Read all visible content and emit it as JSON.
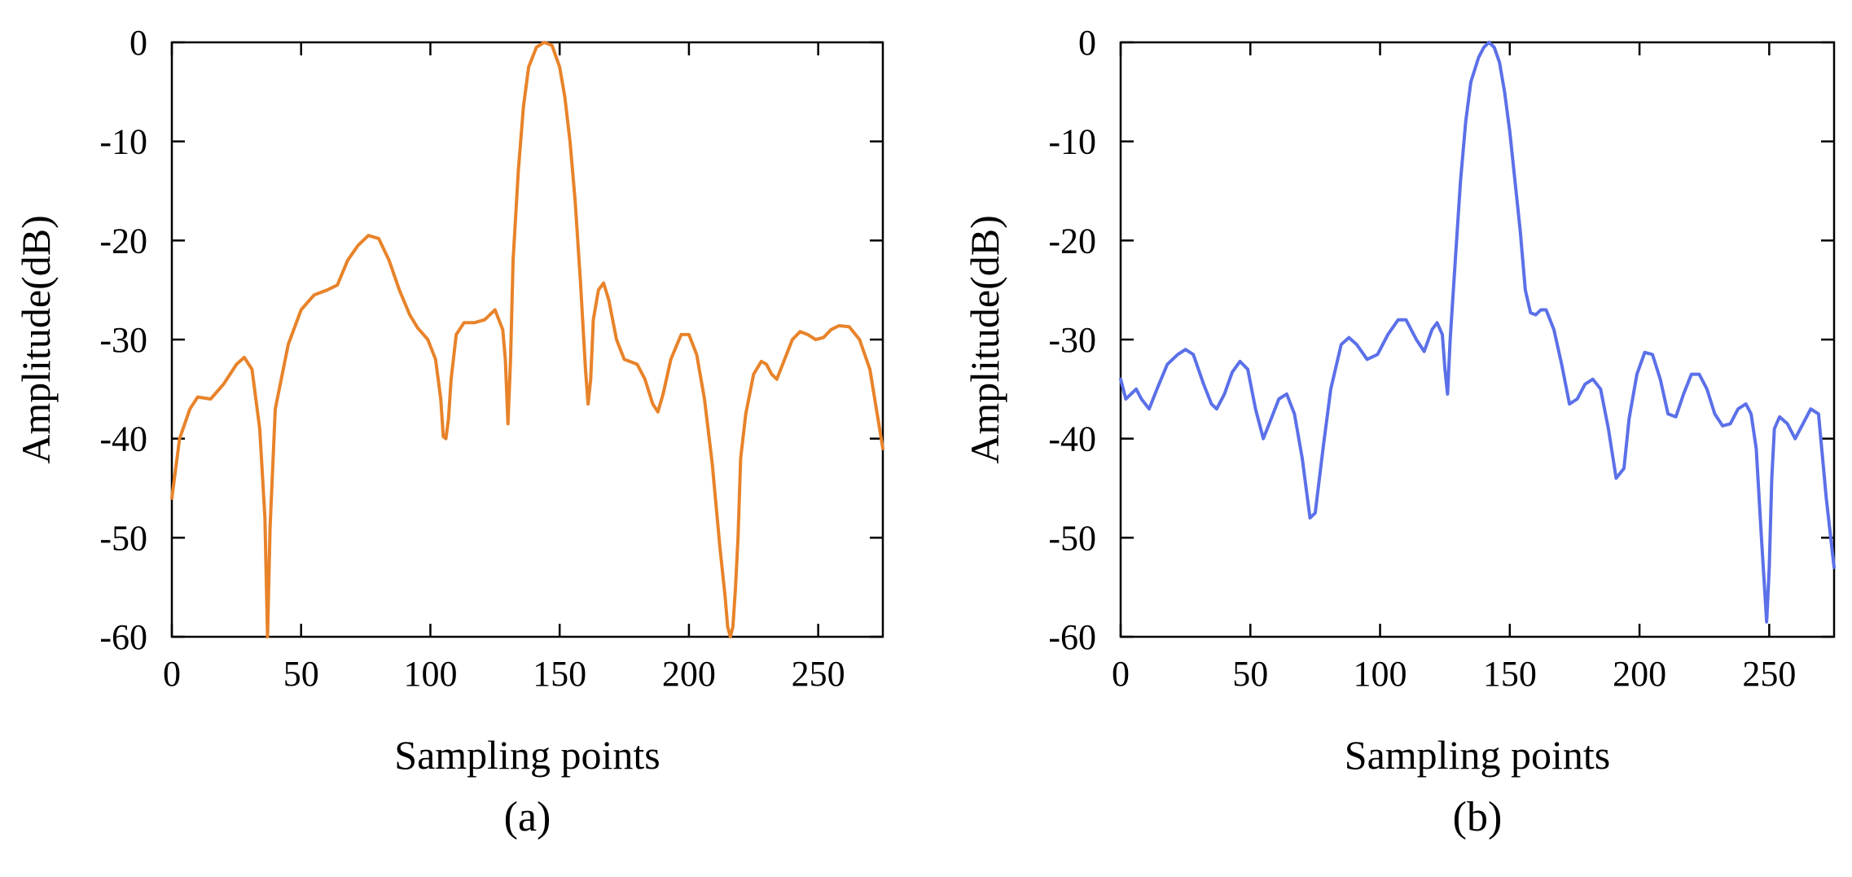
{
  "chart_data": [
    {
      "type": "line",
      "caption": "(a)",
      "xlabel": "Sampling points",
      "ylabel": "Amplitude(dB)",
      "xlim": [
        0,
        275
      ],
      "ylim": [
        -60,
        0
      ],
      "xticks": [
        0,
        50,
        100,
        150,
        200,
        250
      ],
      "yticks": [
        0,
        -10,
        -20,
        -30,
        -40,
        -50,
        -60
      ],
      "xtick_labels": [
        "0",
        "50",
        "100",
        "150",
        "200",
        "250"
      ],
      "ytick_labels": [
        "0",
        "-10",
        "-20",
        "-30",
        "-40",
        "-50",
        "-60"
      ],
      "grid": false,
      "series": [
        {
          "color": "#E8832A",
          "x": [
            0,
            3,
            7,
            10,
            15,
            20,
            25,
            28,
            31,
            34,
            36,
            37,
            38,
            40,
            45,
            50,
            55,
            60,
            64,
            68,
            72,
            76,
            80,
            84,
            88,
            92,
            95,
            99,
            102,
            104,
            105,
            106,
            107,
            108,
            110,
            113,
            117,
            121,
            125,
            128,
            129,
            130,
            131,
            132,
            134,
            136,
            138,
            141,
            144,
            147,
            150,
            152,
            154,
            156,
            158,
            160,
            161,
            162,
            163,
            165,
            167,
            169,
            172,
            175,
            180,
            183,
            186,
            188,
            190,
            193,
            197,
            200,
            203,
            206,
            209,
            212,
            214,
            215,
            216,
            217,
            218,
            219,
            220,
            222,
            225,
            228,
            230,
            232,
            234,
            237,
            240,
            243,
            246,
            249,
            252,
            255,
            258,
            262,
            266,
            270,
            275
          ],
          "y": [
            -46,
            -40,
            -37,
            -35.8,
            -36,
            -34.5,
            -32.5,
            -31.8,
            -33,
            -39,
            -48,
            -60,
            -49,
            -37,
            -30.5,
            -27,
            -25.5,
            -25,
            -24.5,
            -22,
            -20.5,
            -19.5,
            -19.8,
            -22,
            -25,
            -27.5,
            -28.8,
            -30,
            -32,
            -36,
            -39.8,
            -40,
            -38,
            -34,
            -29.5,
            -28.3,
            -28.3,
            -28,
            -27,
            -29,
            -32,
            -38.5,
            -32,
            -22,
            -13,
            -6.5,
            -2.5,
            -0.5,
            0,
            -0.3,
            -2.5,
            -5.5,
            -10,
            -16,
            -24,
            -33,
            -36.5,
            -34,
            -28,
            -25,
            -24.3,
            -26,
            -30,
            -32,
            -32.5,
            -34,
            -36.5,
            -37.3,
            -35.5,
            -32,
            -29.5,
            -29.5,
            -31.5,
            -36,
            -42.5,
            -51,
            -56,
            -59,
            -60,
            -59,
            -55,
            -50,
            -42,
            -37.5,
            -33.5,
            -32.2,
            -32.5,
            -33.5,
            -34,
            -32,
            -30,
            -29.2,
            -29.5,
            -30,
            -29.8,
            -29,
            -28.6,
            -28.7,
            -30,
            -33,
            -41
          ]
        }
      ]
    },
    {
      "type": "line",
      "caption": "(b)",
      "xlabel": "Sampling points",
      "ylabel": "Amplitude(dB)",
      "xlim": [
        0,
        275
      ],
      "ylim": [
        -60,
        0
      ],
      "xticks": [
        0,
        50,
        100,
        150,
        200,
        250
      ],
      "yticks": [
        0,
        -10,
        -20,
        -30,
        -40,
        -50,
        -60
      ],
      "xtick_labels": [
        "0",
        "50",
        "100",
        "150",
        "200",
        "250"
      ],
      "ytick_labels": [
        "0",
        "-10",
        "-20",
        "-30",
        "-40",
        "-50",
        "-60"
      ],
      "grid": false,
      "series": [
        {
          "color": "#5B70E8",
          "x": [
            0,
            2,
            4,
            6,
            8,
            11,
            14,
            18,
            22,
            25,
            28,
            32,
            35,
            37,
            40,
            43,
            46,
            49,
            52,
            55,
            58,
            61,
            64,
            67,
            70,
            73,
            75,
            78,
            81,
            85,
            88,
            91,
            95,
            99,
            103,
            107,
            110,
            114,
            117,
            120,
            122,
            124,
            125,
            126,
            127,
            129,
            131,
            133,
            135,
            138,
            140,
            142,
            144,
            146,
            148,
            150,
            152,
            154,
            156,
            158,
            160,
            162,
            164,
            167,
            170,
            173,
            176,
            179,
            182,
            185,
            188,
            191,
            194,
            196,
            199,
            202,
            205,
            208,
            211,
            214,
            217,
            220,
            223,
            226,
            229,
            232,
            235,
            238,
            241,
            243,
            245,
            247,
            249,
            250,
            251,
            252,
            254,
            257,
            260,
            263,
            266,
            269,
            272,
            275
          ],
          "y": [
            -34,
            -36,
            -35.5,
            -35,
            -36,
            -37,
            -35,
            -32.5,
            -31.5,
            -31,
            -31.5,
            -34.5,
            -36.5,
            -37,
            -35.5,
            -33.3,
            -32.2,
            -33,
            -37,
            -40,
            -38,
            -36,
            -35.5,
            -37.5,
            -42,
            -48,
            -47.5,
            -41,
            -35,
            -30.5,
            -29.8,
            -30.5,
            -32,
            -31.5,
            -29.5,
            -28,
            -28,
            -30,
            -31.2,
            -29,
            -28.3,
            -29.5,
            -33,
            -35.5,
            -30,
            -22,
            -14,
            -8,
            -4,
            -1.5,
            -0.5,
            0,
            -0.5,
            -2,
            -5,
            -9,
            -14,
            -19,
            -25,
            -27.3,
            -27.5,
            -27,
            -27,
            -29,
            -32.5,
            -36.5,
            -36,
            -34.5,
            -34,
            -35,
            -39,
            -44,
            -43,
            -38,
            -33.5,
            -31.3,
            -31.5,
            -34,
            -37.5,
            -37.8,
            -35.5,
            -33.5,
            -33.5,
            -35,
            -37.5,
            -38.7,
            -38.5,
            -37,
            -36.5,
            -37.5,
            -41,
            -50,
            -58.5,
            -53,
            -44,
            -39,
            -37.8,
            -38.5,
            -40,
            -38.5,
            -37,
            -37.5,
            -46,
            -53
          ]
        }
      ]
    }
  ]
}
